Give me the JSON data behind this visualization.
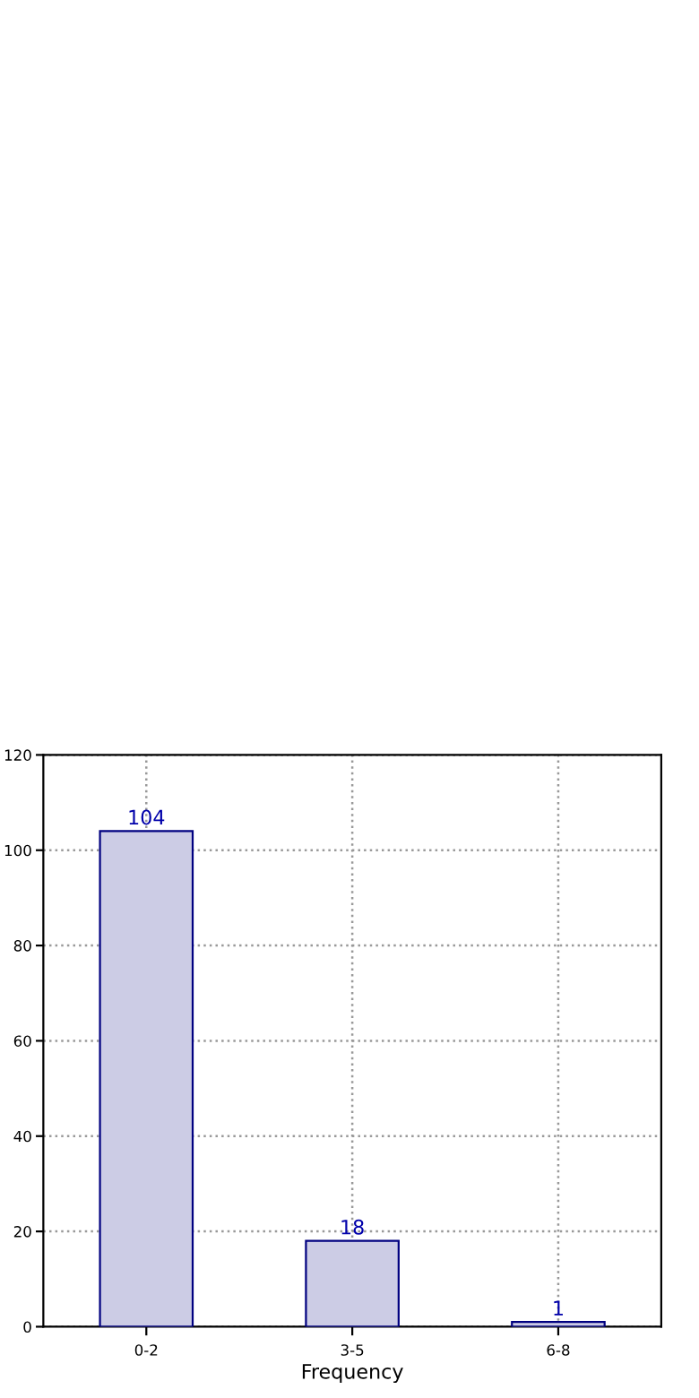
{
  "chart_data": {
    "type": "bar",
    "xlabel": "Frequency",
    "categories": [
      "0-2",
      "3-5",
      "6-8"
    ],
    "values": [
      104,
      18,
      1
    ],
    "color": "#ccccE5",
    "ylim": [
      0,
      120
    ],
    "yticks": [
      0,
      20,
      40,
      60,
      80,
      100,
      120
    ],
    "grid": true,
    "data_labels": true
  }
}
